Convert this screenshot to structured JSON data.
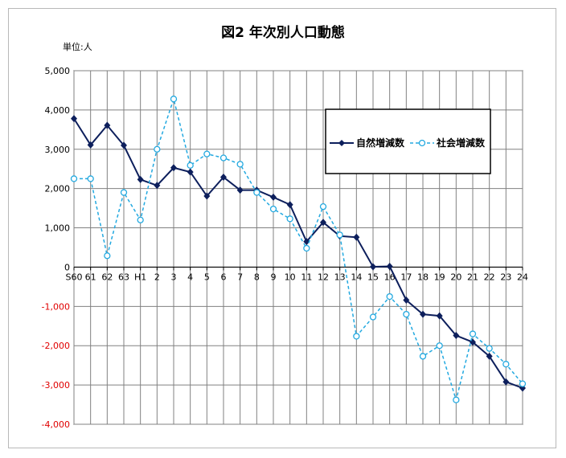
{
  "chart_data": {
    "type": "line",
    "title": "図2 年次別人口動態",
    "unit_label": "単位:人",
    "categories": [
      "S60",
      "61",
      "62",
      "63",
      "H1",
      "2",
      "3",
      "4",
      "5",
      "6",
      "7",
      "8",
      "9",
      "10",
      "11",
      "12",
      "13",
      "14",
      "15",
      "16",
      "17",
      "18",
      "19",
      "20",
      "21",
      "22",
      "23",
      "24"
    ],
    "ylim": [
      -4000,
      5000
    ],
    "yticks": [
      5000,
      4000,
      3000,
      2000,
      1000,
      0,
      -1000,
      -2000,
      -3000,
      -4000
    ],
    "ytick_labels": [
      "5,000",
      "4,000",
      "3,000",
      "2,000",
      "1,000",
      "0",
      "-1,000",
      "-2,000",
      "-3,000",
      "-4,000"
    ],
    "grid": true,
    "legend_position": "upper-right",
    "series": [
      {
        "name": "自然増減数",
        "color": "#0d1f5c",
        "style": "solid-diamond",
        "values": [
          3780,
          3110,
          3610,
          3100,
          2230,
          2080,
          2530,
          2420,
          1810,
          2290,
          1960,
          1960,
          1780,
          1590,
          650,
          1140,
          790,
          760,
          10,
          20,
          -840,
          -1200,
          -1240,
          -1740,
          -1910,
          -2270,
          -2920,
          -3080
        ]
      },
      {
        "name": "社会増減数",
        "color": "#23a9e0",
        "style": "dashed-circle",
        "values": [
          2250,
          2250,
          290,
          1900,
          1200,
          3000,
          4280,
          2590,
          2880,
          2780,
          2620,
          1900,
          1480,
          1230,
          480,
          1540,
          820,
          -1760,
          -1270,
          -750,
          -1200,
          -2270,
          -2000,
          -3380,
          -1700,
          -2070,
          -2470,
          -2970
        ]
      }
    ]
  }
}
